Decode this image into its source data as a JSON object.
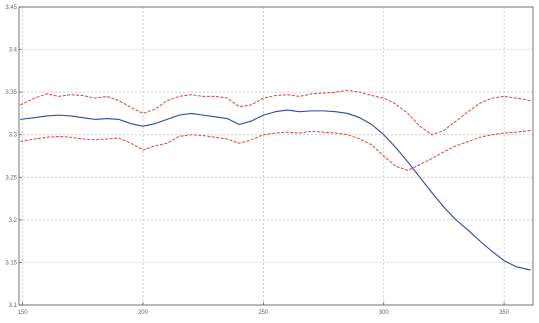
{
  "chart_data": {
    "type": "line",
    "title": "",
    "xlabel": "",
    "ylabel": "",
    "xlim": [
      148.5,
      362
    ],
    "ylim": [
      3.1,
      3.45
    ],
    "grid": true,
    "legend": "none",
    "x_ticks": [
      150,
      200,
      250,
      300,
      350
    ],
    "x_tick_labels": [
      "150",
      "200",
      "250",
      "300",
      "350"
    ],
    "y_ticks": [
      3.1,
      3.15,
      3.2,
      3.25,
      3.3,
      3.35,
      3.4,
      3.45
    ],
    "y_tick_labels": [
      "3.1",
      "3.15",
      "3.2",
      "3.25",
      "3.3",
      "3.35",
      "3.4",
      "3.45"
    ],
    "series": [
      {
        "role": "upper-band",
        "color": "#d44444",
        "dash": true,
        "x": [
          149,
          155,
          160,
          165,
          170,
          175,
          180,
          185,
          190,
          195,
          200,
          205,
          210,
          215,
          220,
          225,
          230,
          235,
          240,
          245,
          250,
          255,
          260,
          265,
          270,
          275,
          280,
          285,
          290,
          295,
          300,
          305,
          310,
          315,
          320,
          325,
          330,
          335,
          340,
          345,
          350,
          355,
          361
        ],
        "values": [
          3.335,
          3.343,
          3.348,
          3.345,
          3.347,
          3.346,
          3.343,
          3.345,
          3.34,
          3.332,
          3.325,
          3.33,
          3.34,
          3.345,
          3.347,
          3.345,
          3.345,
          3.343,
          3.333,
          3.335,
          3.343,
          3.346,
          3.347,
          3.345,
          3.348,
          3.349,
          3.35,
          3.352,
          3.35,
          3.346,
          3.343,
          3.336,
          3.325,
          3.31,
          3.3,
          3.305,
          3.316,
          3.327,
          3.337,
          3.343,
          3.345,
          3.343,
          3.34
        ]
      },
      {
        "role": "mean",
        "color": "#3344aa",
        "dash": false,
        "x": [
          149,
          155,
          160,
          165,
          170,
          175,
          180,
          185,
          190,
          195,
          200,
          205,
          210,
          215,
          220,
          225,
          230,
          235,
          240,
          245,
          250,
          255,
          260,
          265,
          270,
          275,
          280,
          285,
          290,
          295,
          300,
          305,
          310,
          315,
          320,
          325,
          330,
          335,
          340,
          345,
          350,
          355,
          361
        ],
        "values": [
          3.318,
          3.32,
          3.322,
          3.323,
          3.322,
          3.32,
          3.318,
          3.319,
          3.318,
          3.313,
          3.31,
          3.313,
          3.318,
          3.323,
          3.325,
          3.323,
          3.321,
          3.319,
          3.312,
          3.316,
          3.323,
          3.327,
          3.329,
          3.327,
          3.328,
          3.328,
          3.327,
          3.325,
          3.32,
          3.312,
          3.3,
          3.285,
          3.268,
          3.25,
          3.232,
          3.215,
          3.2,
          3.188,
          3.175,
          3.163,
          3.152,
          3.145,
          3.141
        ]
      },
      {
        "role": "lower-band",
        "color": "#d44444",
        "dash": true,
        "x": [
          149,
          155,
          160,
          165,
          170,
          175,
          180,
          185,
          190,
          195,
          200,
          205,
          210,
          215,
          220,
          225,
          230,
          235,
          240,
          245,
          250,
          255,
          260,
          265,
          270,
          275,
          280,
          285,
          290,
          295,
          300,
          305,
          310,
          315,
          320,
          325,
          330,
          335,
          340,
          345,
          350,
          355,
          361
        ],
        "values": [
          3.292,
          3.295,
          3.297,
          3.298,
          3.297,
          3.295,
          3.294,
          3.295,
          3.296,
          3.29,
          3.282,
          3.287,
          3.29,
          3.298,
          3.3,
          3.299,
          3.297,
          3.295,
          3.29,
          3.294,
          3.3,
          3.302,
          3.303,
          3.302,
          3.304,
          3.303,
          3.302,
          3.3,
          3.295,
          3.288,
          3.275,
          3.263,
          3.258,
          3.265,
          3.272,
          3.28,
          3.287,
          3.292,
          3.297,
          3.3,
          3.302,
          3.303,
          3.305
        ]
      }
    ]
  }
}
